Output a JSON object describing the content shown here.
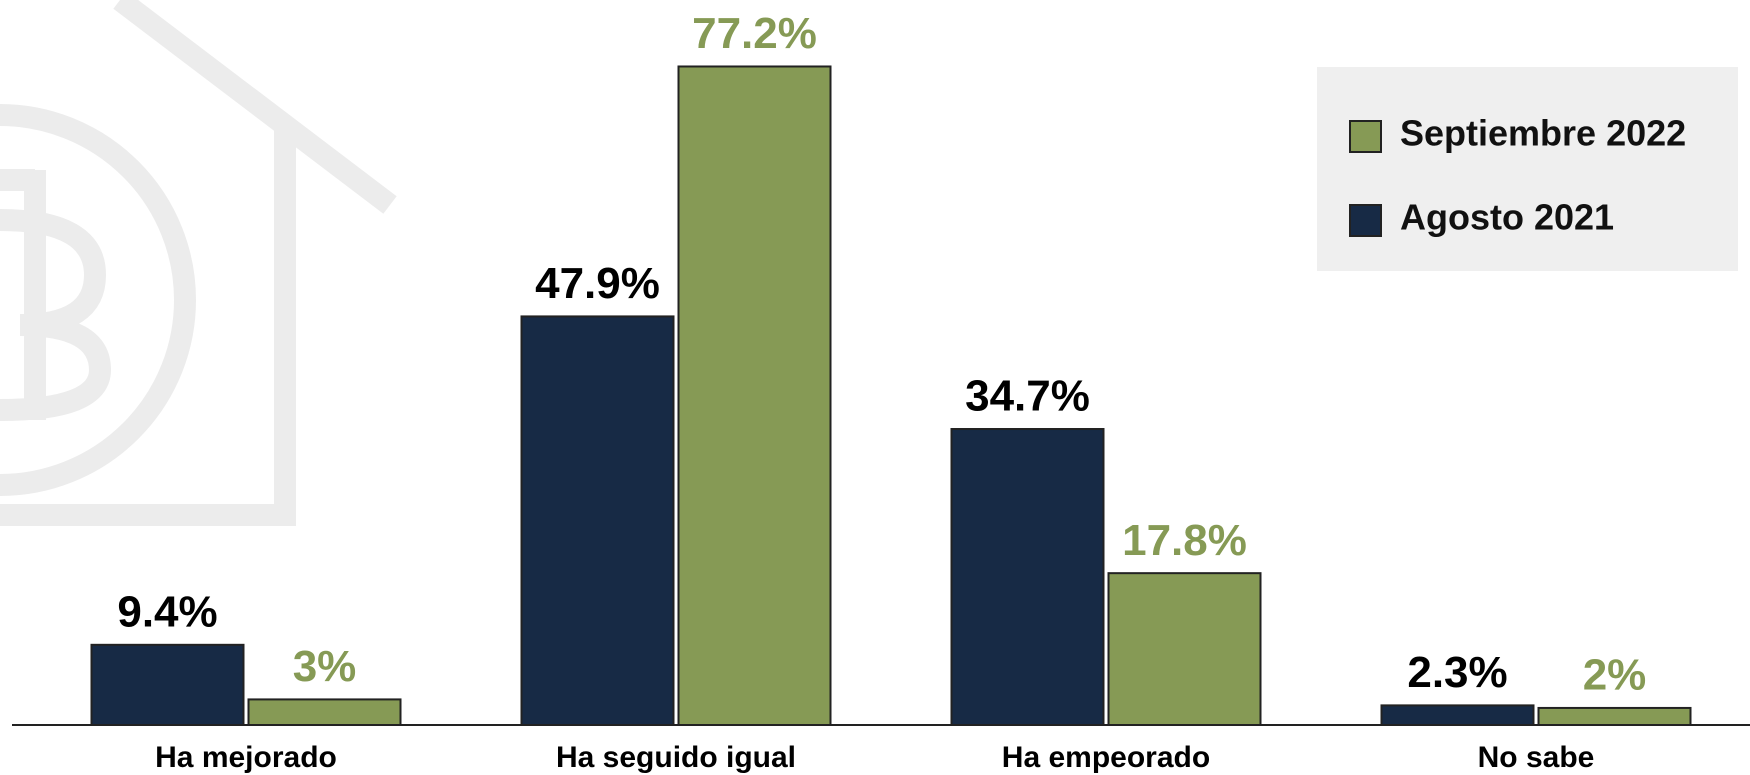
{
  "chart_data": {
    "type": "bar",
    "categories": [
      "Ha mejorado",
      "Ha seguido igual",
      "Ha empeorado",
      "No sabe"
    ],
    "series": [
      {
        "name": "Agosto 2021",
        "color": "#172a45",
        "label_color": "#000000",
        "values": [
          9.4,
          47.9,
          34.7,
          2.3
        ],
        "value_labels": [
          "9.4%",
          "47.9%",
          "34.7%",
          "2.3%"
        ]
      },
      {
        "name": "Septiembre 2022",
        "color": "#869a55",
        "label_color": "#869a55",
        "values": [
          3,
          77.2,
          17.8,
          2
        ],
        "value_labels": [
          "3%",
          "77.2%",
          "17.8%",
          "2%"
        ]
      }
    ],
    "legend": "top-right"
  }
}
